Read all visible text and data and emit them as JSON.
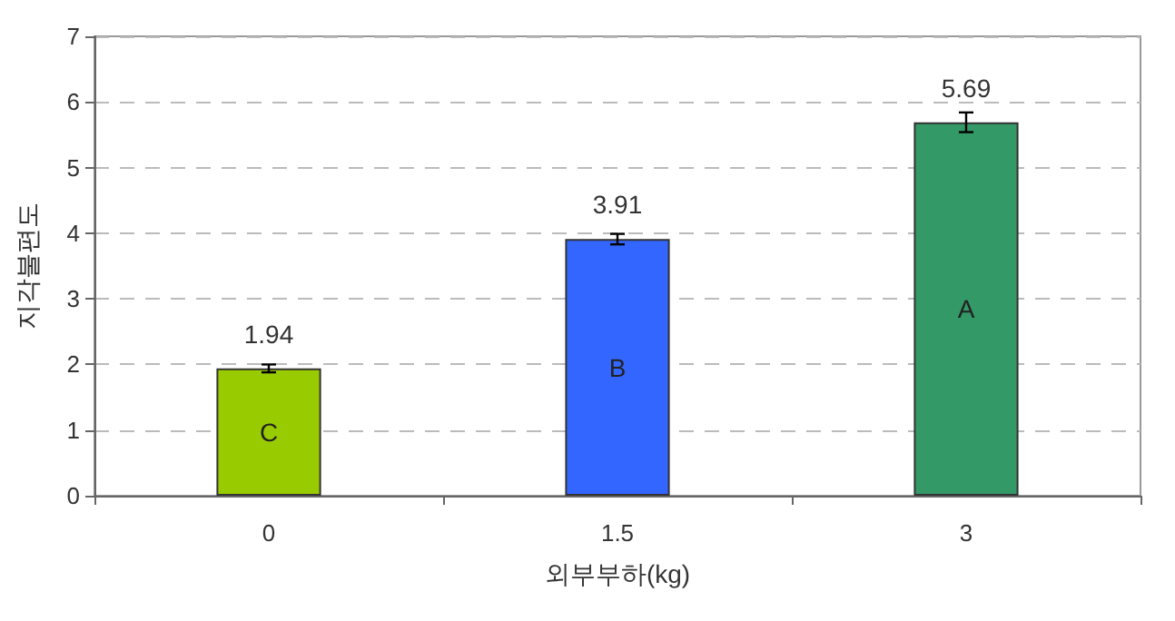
{
  "chart_data": {
    "type": "bar",
    "xlabel": "외부부하(kg)",
    "ylabel": "지각불편도",
    "categories": [
      "0",
      "1.5",
      "3"
    ],
    "values": [
      1.94,
      3.91,
      5.69
    ],
    "colors": [
      "#99cc00",
      "#3366ff",
      "#339966"
    ],
    "errors": [
      0.06,
      0.08,
      0.15
    ],
    "data_labels": true,
    "annotations": [
      "C",
      "B",
      "A"
    ],
    "ylim": [
      0,
      7
    ],
    "yticks": [
      0,
      1,
      2,
      3,
      4,
      5,
      6,
      7
    ],
    "grid": "y"
  }
}
